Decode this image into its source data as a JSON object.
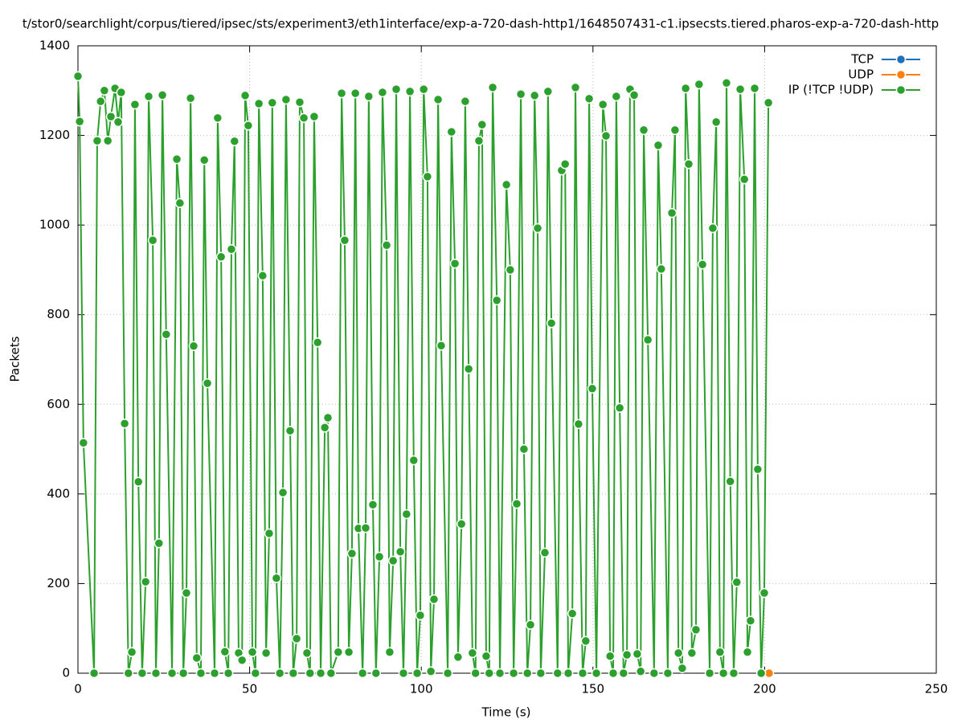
{
  "chart_data": {
    "type": "line",
    "title": "t/stor0/searchlight/corpus/tiered/ipsec/sts/experiment3/eth1interface/exp-a-720-dash-http1/1648507431-c1.ipsecsts.tiered.pharos-exp-a-720-dash-http",
    "x_label": "Time (s)",
    "y_label": "Packets",
    "xlim": [
      0,
      250
    ],
    "xticks": [
      0,
      50,
      100,
      150,
      200,
      250
    ],
    "ylim": [
      0,
      1400
    ],
    "yticks": [
      0,
      200,
      400,
      600,
      800,
      1000,
      1200,
      1400
    ],
    "grid": true,
    "legend": "upper right",
    "series": [
      {
        "name": "TCP",
        "color": "#1f6fba",
        "x": [],
        "values": []
      },
      {
        "name": "UDP",
        "color": "#ff7f0e",
        "x": [
          201.3
        ],
        "values": [
          0
        ]
      },
      {
        "name": "IP (!TCP  !UDP)",
        "color": "#2ca02c",
        "x": [
          0,
          0.5,
          1.6,
          4.7,
          5.6,
          6.6,
          7.7,
          8.7,
          9.6,
          10.8,
          11.7,
          12.6,
          13.6,
          14.7,
          15.7,
          16.6,
          17.6,
          18.7,
          19.7,
          20.6,
          21.8,
          22.7,
          23.6,
          24.6,
          25.7,
          27.4,
          28.8,
          29.7,
          30.7,
          31.6,
          32.8,
          33.7,
          34.6,
          35.8,
          36.8,
          37.7,
          39.8,
          40.7,
          41.7,
          42.8,
          43.8,
          44.7,
          45.6,
          46.8,
          47.8,
          48.7,
          49.6,
          50.8,
          51.7,
          52.7,
          53.8,
          54.8,
          55.7,
          56.6,
          57.8,
          58.8,
          59.7,
          60.6,
          61.8,
          62.7,
          63.7,
          64.6,
          65.8,
          66.7,
          67.6,
          68.8,
          69.8,
          70.7,
          71.9,
          72.8,
          73.7,
          75.8,
          76.8,
          77.7,
          78.9,
          79.8,
          80.8,
          81.7,
          82.9,
          83.8,
          84.7,
          85.9,
          86.8,
          87.8,
          88.7,
          89.9,
          90.8,
          91.8,
          92.7,
          93.9,
          94.8,
          95.7,
          96.7,
          97.8,
          98.8,
          99.7,
          100.7,
          101.8,
          102.8,
          103.7,
          104.9,
          105.8,
          107.7,
          108.8,
          109.8,
          110.7,
          111.7,
          112.8,
          113.8,
          114.9,
          115.8,
          116.8,
          117.7,
          118.9,
          119.8,
          120.8,
          122.0,
          122.9,
          124.8,
          125.9,
          126.9,
          127.8,
          129.0,
          129.9,
          130.9,
          131.8,
          133.0,
          133.9,
          134.8,
          136.0,
          136.9,
          137.9,
          139.7,
          140.9,
          141.9,
          142.8,
          144.0,
          144.9,
          145.8,
          147.0,
          147.9,
          148.9,
          149.8,
          151.0,
          152.9,
          153.8,
          155.0,
          155.9,
          156.8,
          157.8,
          158.9,
          159.9,
          160.8,
          162.0,
          162.9,
          163.9,
          164.8,
          166.0,
          167.8,
          169.0,
          169.9,
          171.8,
          173.0,
          173.9,
          174.9,
          176.0,
          177.0,
          177.9,
          178.8,
          180.0,
          180.9,
          181.9,
          184.0,
          184.9,
          185.9,
          187.0,
          188.0,
          188.9,
          190.0,
          191.0,
          191.9,
          192.9,
          194.1,
          195.0,
          195.9,
          197.1,
          198.0,
          199.0,
          199.9,
          201.1
        ],
        "values": [
          1332,
          1231,
          514,
          0,
          1188,
          1276,
          1300,
          1188,
          1242,
          1305,
          1230,
          1296,
          557,
          0,
          47,
          1269,
          427,
          0,
          204,
          1287,
          966,
          0,
          290,
          1290,
          756,
          0,
          1147,
          1049,
          0,
          179,
          1283,
          730,
          34,
          0,
          1145,
          647,
          0,
          1239,
          929,
          48,
          0,
          946,
          1187,
          45,
          29,
          1289,
          1222,
          47,
          0,
          1271,
          887,
          45,
          312,
          1273,
          212,
          0,
          403,
          1280,
          541,
          0,
          77,
          1274,
          1239,
          45,
          0,
          1242,
          738,
          0,
          548,
          570,
          0,
          47,
          1294,
          966,
          47,
          267,
          1294,
          323,
          0,
          324,
          1287,
          376,
          0,
          260,
          1296,
          955,
          47,
          251,
          1303,
          271,
          0,
          355,
          1298,
          475,
          0,
          129,
          1303,
          1108,
          4,
          165,
          1280,
          731,
          0,
          1208,
          914,
          36,
          333,
          1276,
          679,
          45,
          0,
          1188,
          1224,
          38,
          0,
          1307,
          832,
          0,
          1090,
          900,
          0,
          378,
          1292,
          500,
          0,
          108,
          1289,
          993,
          0,
          269,
          1298,
          781,
          0,
          1122,
          1136,
          0,
          133,
          1307,
          556,
          0,
          72,
          1282,
          635,
          0,
          1269,
          1199,
          38,
          0,
          1287,
          592,
          0,
          41,
          1303,
          1290,
          43,
          4,
          1212,
          744,
          0,
          1178,
          902,
          0,
          1027,
          1212,
          45,
          11,
          1305,
          1136,
          45,
          97,
          1314,
          912,
          0,
          993,
          1230,
          47,
          0,
          1317,
          428,
          0,
          203,
          1303,
          1102,
          47,
          117,
          1305,
          455,
          0,
          179,
          1273
        ]
      }
    ]
  }
}
